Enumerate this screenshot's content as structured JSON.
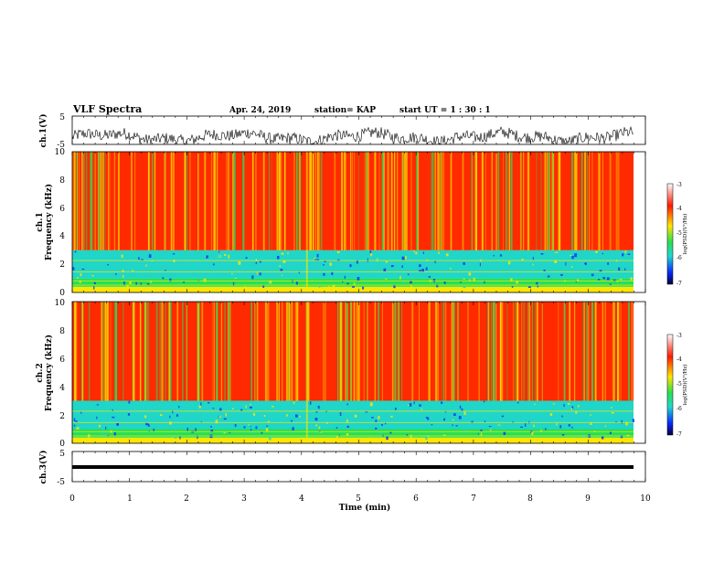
{
  "header": {
    "title": "VLF Spectra",
    "date": "Apr. 24, 2019",
    "station": "station= KAP",
    "start_ut": "start  UT =   1 : 30 : 1"
  },
  "chart_data": [
    {
      "type": "line",
      "panel": "ch1-waveform",
      "ylabel": "ch.1(V)",
      "ylim": [
        -5,
        5
      ],
      "y_ticks": [
        "5",
        "-5"
      ],
      "xlim": [
        0,
        10
      ],
      "trace_color": "#000000"
    },
    {
      "type": "heatmap",
      "panel": "ch1-spectrogram",
      "ylabel": "Frequency  (kHz)",
      "channel_label": "ch.1",
      "ylim": [
        0,
        10
      ],
      "y_ticks": [
        "0",
        "2",
        "4",
        "6",
        "8",
        "10"
      ],
      "xlim": [
        0,
        10
      ],
      "colorbar": {
        "label": "log(PSD)(V²/Hz)",
        "ticks": [
          "-3",
          "-4",
          "-5",
          "-6",
          "-7"
        ],
        "range": [
          -7,
          -3
        ]
      },
      "bands": [
        {
          "from_khz": 0.0,
          "to_khz": 0.4,
          "log_psd": -4.6
        },
        {
          "from_khz": 0.4,
          "to_khz": 1.0,
          "log_psd": -5.2
        },
        {
          "from_khz": 1.0,
          "to_khz": 3.0,
          "log_psd": -5.6
        },
        {
          "from_khz": 3.0,
          "to_khz": 10.0,
          "log_psd": -3.9
        }
      ]
    },
    {
      "type": "heatmap",
      "panel": "ch2-spectrogram",
      "ylabel": "Frequency  (kHz)",
      "channel_label": "ch.2",
      "ylim": [
        0,
        10
      ],
      "y_ticks": [
        "0",
        "2",
        "4",
        "6",
        "8",
        "10"
      ],
      "xlim": [
        0,
        10
      ],
      "colorbar": {
        "label": "log(PSD)(V²/Hz)",
        "ticks": [
          "-3",
          "-4",
          "-5",
          "-6",
          "-7"
        ],
        "range": [
          -7,
          -3
        ]
      },
      "bands": [
        {
          "from_khz": 0.0,
          "to_khz": 0.4,
          "log_psd": -4.6
        },
        {
          "from_khz": 0.4,
          "to_khz": 1.0,
          "log_psd": -5.3
        },
        {
          "from_khz": 1.0,
          "to_khz": 3.0,
          "log_psd": -5.7
        },
        {
          "from_khz": 3.0,
          "to_khz": 10.0,
          "log_psd": -3.9
        }
      ]
    },
    {
      "type": "line",
      "panel": "ch3-waveform",
      "ylabel": "ch.3(V)",
      "ylim": [
        -5,
        5
      ],
      "y_ticks": [
        "5",
        "-5"
      ],
      "xlim": [
        0,
        10
      ],
      "level_v": 0,
      "trace_color": "#000000"
    }
  ],
  "x_axis": {
    "label": "Time  (min)",
    "ticks": [
      "0",
      "1",
      "2",
      "3",
      "4",
      "5",
      "6",
      "7",
      "8",
      "9",
      "10"
    ]
  },
  "colors": {
    "red": "#ff2a00",
    "yellow": "#ffe600",
    "green": "#22e05a",
    "cyan": "#1fd6c8",
    "blue": "#0a2cff",
    "navy": "#000060"
  }
}
